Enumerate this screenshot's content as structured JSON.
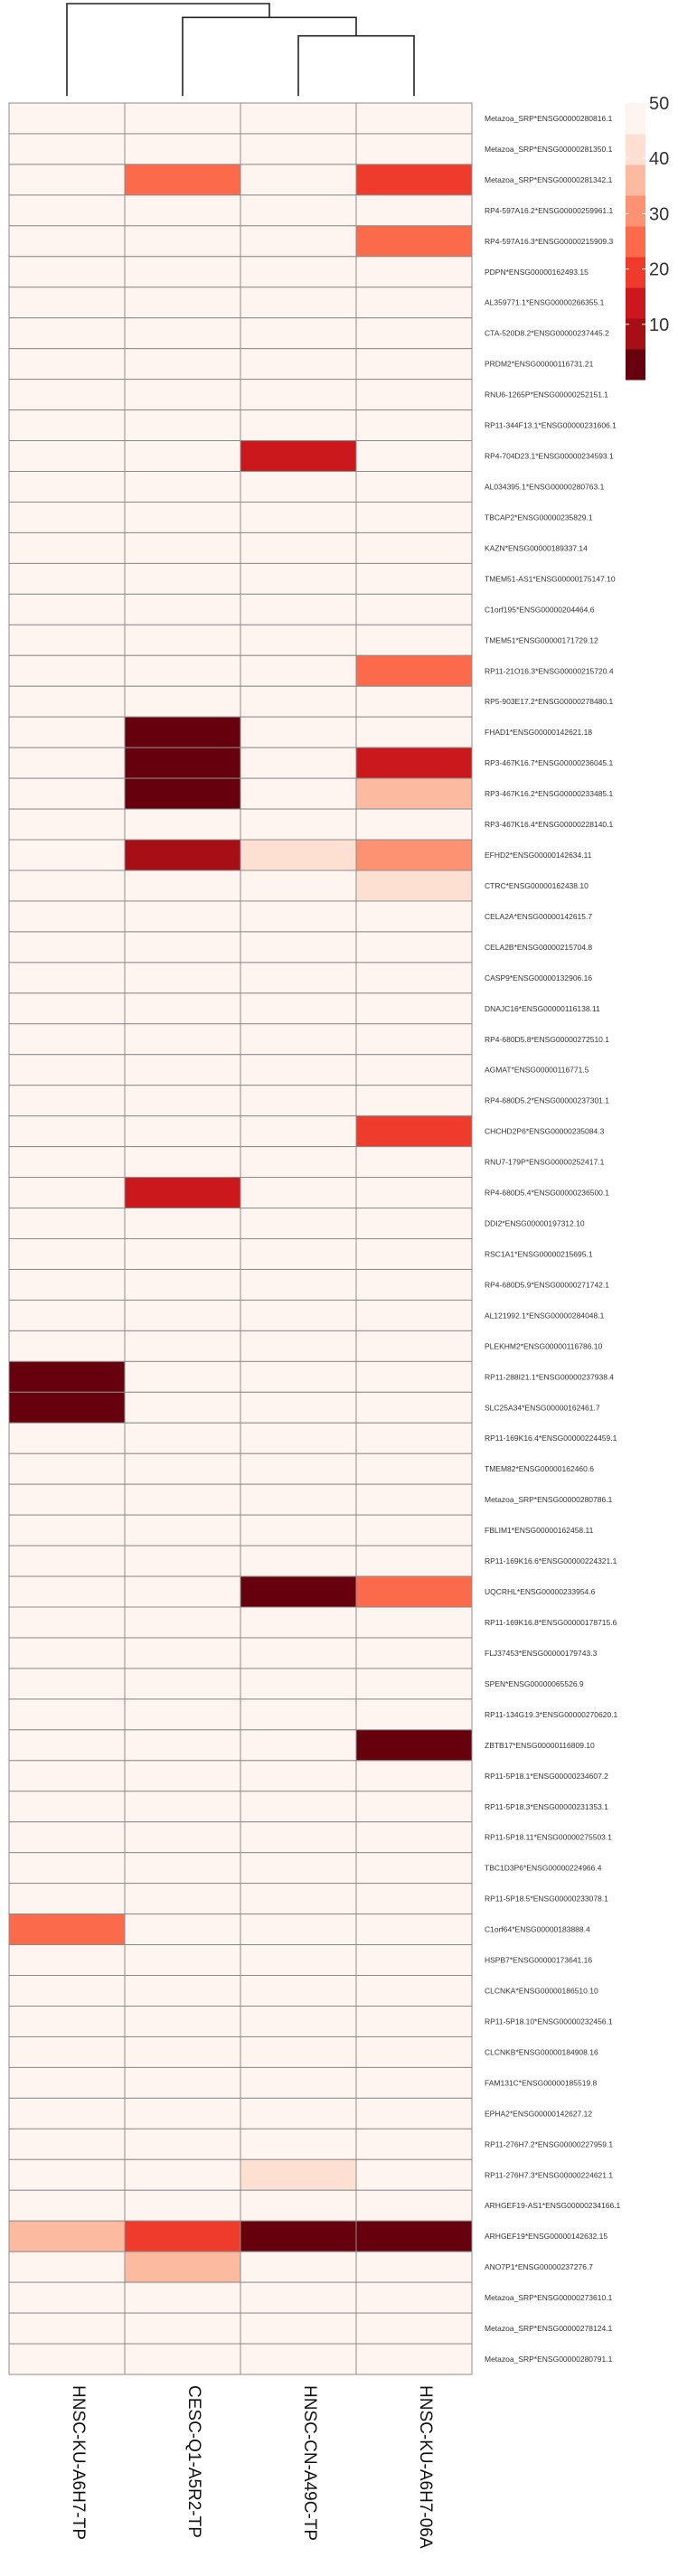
{
  "chart_data": {
    "type": "heatmap",
    "title": "",
    "columns": [
      "HNSC-KU-A6H7-TP",
      "CESC-Q1-A5R2-TP",
      "HNSC-CN-A49C-TP",
      "HNSC-KU-A6H7-06A"
    ],
    "rows": [
      "Metazoa_SRP*ENSG00000280816.1",
      "Metazoa_SRP*ENSG00000281350.1",
      "Metazoa_SRP*ENSG00000281342.1",
      "RP4-597A16.2*ENSG00000259961.1",
      "RP4-597A16.3*ENSG00000215909.3",
      "PDPN*ENSG00000162493.15",
      "AL359771.1*ENSG00000266355.1",
      "CTA-520D8.2*ENSG00000237445.2",
      "PRDM2*ENSG00000116731.21",
      "RNU6-1265P*ENSG00000252151.1",
      "RP11-344F13.1*ENSG00000231606.1",
      "RP4-704D23.1*ENSG00000234593.1",
      "AL034395.1*ENSG00000280763.1",
      "TBCAP2*ENSG00000235829.1",
      "KAZN*ENSG00000189337.14",
      "TMEM51-AS1*ENSG00000175147.10",
      "C1orf195*ENSG00000204464.6",
      "TMEM51*ENSG00000171729.12",
      "RP11-21O16.3*ENSG00000215720.4",
      "RP5-903E17.2*ENSG00000278480.1",
      "FHAD1*ENSG00000142621.18",
      "RP3-467K16.7*ENSG00000236045.1",
      "RP3-467K16.2*ENSG00000233485.1",
      "RP3-467K16.4*ENSG00000228140.1",
      "EFHD2*ENSG00000142634.11",
      "CTRC*ENSG00000162438.10",
      "CELA2A*ENSG00000142615.7",
      "CELA2B*ENSG00000215704.8",
      "CASP9*ENSG00000132906.16",
      "DNAJC16*ENSG00000116138.11",
      "RP4-680D5.8*ENSG00000272510.1",
      "AGMAT*ENSG00000116771.5",
      "RP4-680D5.2*ENSG00000237301.1",
      "CHCHD2P6*ENSG00000235084.3",
      "RNU7-179P*ENSG00000252417.1",
      "RP4-680D5.4*ENSG00000236500.1",
      "DDI2*ENSG00000197312.10",
      "RSC1A1*ENSG00000215695.1",
      "RP4-680D5.9*ENSG00000271742.1",
      "AL121992.1*ENSG00000284048.1",
      "PLEKHM2*ENSG00000116786.10",
      "RP11-288I21.1*ENSG00000237938.4",
      "SLC25A34*ENSG00000162461.7",
      "RP11-169K16.4*ENSG00000224459.1",
      "TMEM82*ENSG00000162460.6",
      "Metazoa_SRP*ENSG00000280786.1",
      "FBLIM1*ENSG00000162458.11",
      "RP11-169K16.6*ENSG00000224321.1",
      "UQCRHL*ENSG00000233954.6",
      "RP11-169K16.8*ENSG00000178715.6",
      "FLJ37453*ENSG00000179743.3",
      "SPEN*ENSG00000065526.9",
      "RP11-134G19.3*ENSG00000270620.1",
      "ZBTB17*ENSG00000116809.10",
      "RP11-5P18.1*ENSG00000234607.2",
      "RP11-5P18.3*ENSG00000231353.1",
      "RP11-5P18.11*ENSG00000275503.1",
      "TBC1D3P6*ENSG00000224966.4",
      "RP11-5P18.5*ENSG00000233078.1",
      "C1orf64*ENSG00000183888.4",
      "HSPB7*ENSG00000173641.16",
      "CLCNKA*ENSG00000186510.10",
      "RP11-5P18.10*ENSG00000232456.1",
      "CLCNKB*ENSG00000184908.16",
      "FAM131C*ENSG00000185519.8",
      "EPHA2*ENSG00000142627.12",
      "RP11-276H7.2*ENSG00000227959.1",
      "RP11-276H7.3*ENSG00000224621.1",
      "ARHGEF19-AS1*ENSG00000234166.1",
      "ARHGEF19*ENSG00000142632.15",
      "ANO7P1*ENSG00000237276.7",
      "Metazoa_SRP*ENSG00000273610.1",
      "Metazoa_SRP*ENSG00000278124.1",
      "Metazoa_SRP*ENSG00000280791.1"
    ],
    "highlights": [
      {
        "row": 2,
        "col": 1,
        "value": 26
      },
      {
        "row": 2,
        "col": 3,
        "value": 19
      },
      {
        "row": 4,
        "col": 3,
        "value": 25
      },
      {
        "row": 11,
        "col": 2,
        "value": 14
      },
      {
        "row": 18,
        "col": 3,
        "value": 25
      },
      {
        "row": 20,
        "col": 1,
        "value": 2
      },
      {
        "row": 21,
        "col": 1,
        "value": 2
      },
      {
        "row": 21,
        "col": 3,
        "value": 14
      },
      {
        "row": 22,
        "col": 1,
        "value": 2
      },
      {
        "row": 22,
        "col": 3,
        "value": 36
      },
      {
        "row": 24,
        "col": 1,
        "value": 10
      },
      {
        "row": 24,
        "col": 2,
        "value": 43
      },
      {
        "row": 24,
        "col": 3,
        "value": 31
      },
      {
        "row": 25,
        "col": 3,
        "value": 43
      },
      {
        "row": 33,
        "col": 3,
        "value": 19
      },
      {
        "row": 35,
        "col": 1,
        "value": 13
      },
      {
        "row": 41,
        "col": 0,
        "value": 2
      },
      {
        "row": 42,
        "col": 0,
        "value": 2
      },
      {
        "row": 48,
        "col": 2,
        "value": 2
      },
      {
        "row": 48,
        "col": 3,
        "value": 25
      },
      {
        "row": 53,
        "col": 3,
        "value": 2
      },
      {
        "row": 59,
        "col": 0,
        "value": 25
      },
      {
        "row": 67,
        "col": 2,
        "value": 43
      },
      {
        "row": 69,
        "col": 0,
        "value": 36
      },
      {
        "row": 69,
        "col": 1,
        "value": 19
      },
      {
        "row": 69,
        "col": 2,
        "value": 2
      },
      {
        "row": 69,
        "col": 3,
        "value": 2
      },
      {
        "row": 70,
        "col": 1,
        "value": 36
      }
    ],
    "default_value": 49,
    "color_scale": {
      "min": 0,
      "max": 50,
      "ticks": [
        10,
        20,
        30,
        40,
        50
      ],
      "colors": [
        "#67000d",
        "#a50f15",
        "#cb181d",
        "#ef3b2c",
        "#fb6a4a",
        "#fc9272",
        "#fcbba1",
        "#fee0d2",
        "#fff5f0"
      ]
    },
    "dendrogram": {
      "leaf_order": [
        "HNSC-KU-A6H7-TP",
        "CESC-Q1-A5R2-TP",
        "HNSC-CN-A49C-TP",
        "HNSC-KU-A6H7-06A"
      ],
      "merges": [
        [
          2,
          3,
          0.65
        ],
        [
          1,
          4,
          0.85
        ],
        [
          0,
          5,
          1.0
        ]
      ]
    },
    "grid": true,
    "legend_position": "top-right",
    "xlabel": "",
    "ylabel": ""
  }
}
